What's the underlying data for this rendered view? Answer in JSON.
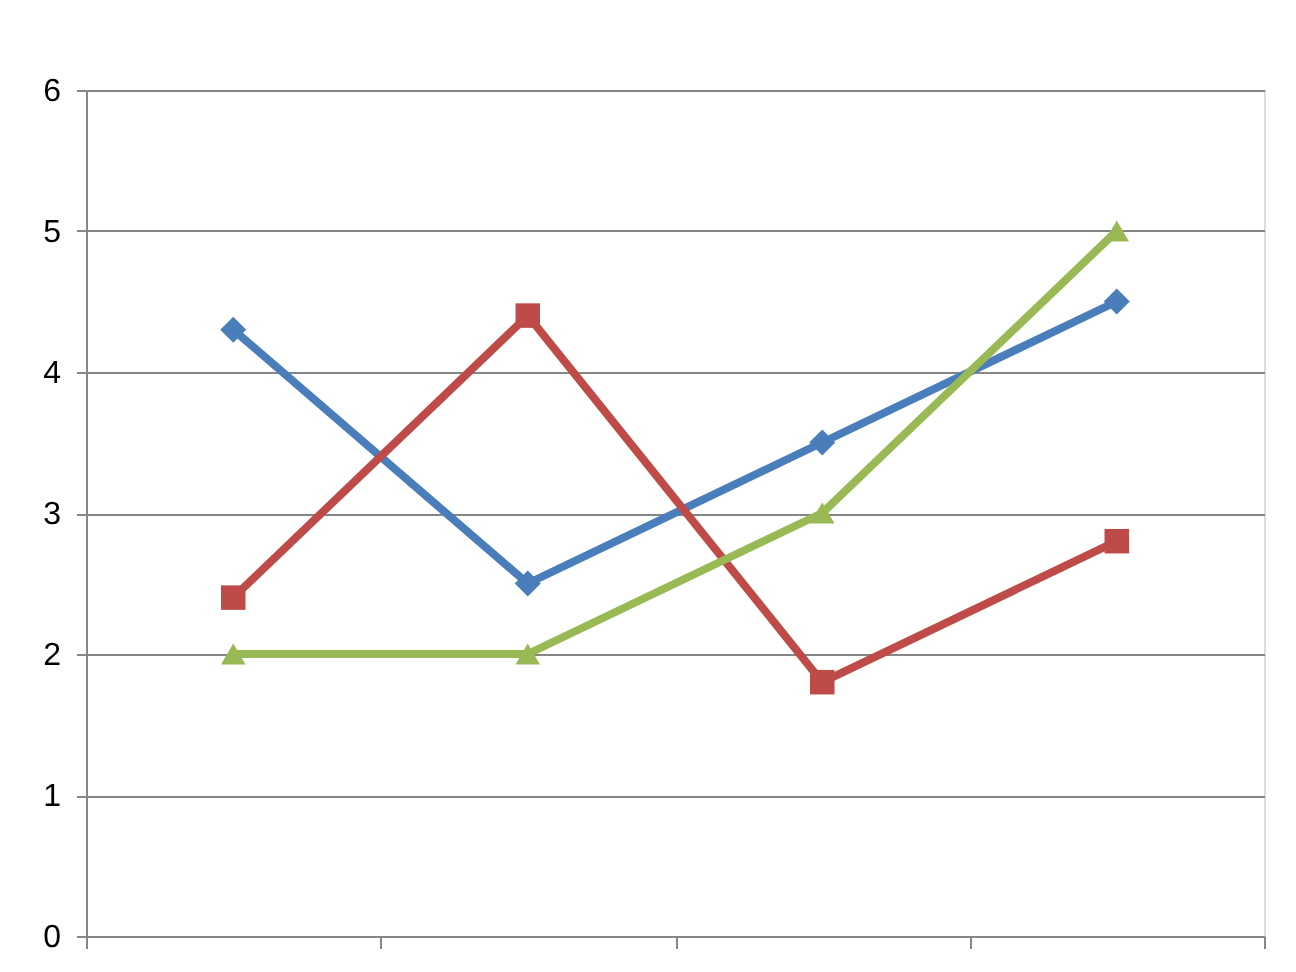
{
  "chart_data": {
    "type": "line",
    "categories": [
      null,
      null,
      null,
      null
    ],
    "series": [
      {
        "color": "#4a7ebb",
        "marker": "diamond",
        "values": [
          4.3,
          2.5,
          3.5,
          4.5
        ]
      },
      {
        "color": "#be4b48",
        "marker": "square",
        "values": [
          2.4,
          4.4,
          1.8,
          2.8
        ]
      },
      {
        "color": "#98b954",
        "marker": "triangle",
        "values": [
          2,
          2,
          3,
          5
        ]
      }
    ],
    "ylim": [
      0,
      6
    ],
    "yticks": [
      0,
      1,
      2,
      3,
      4,
      5,
      6
    ],
    "grid": "y",
    "tick_labels": "y",
    "line_style": "solid"
  }
}
